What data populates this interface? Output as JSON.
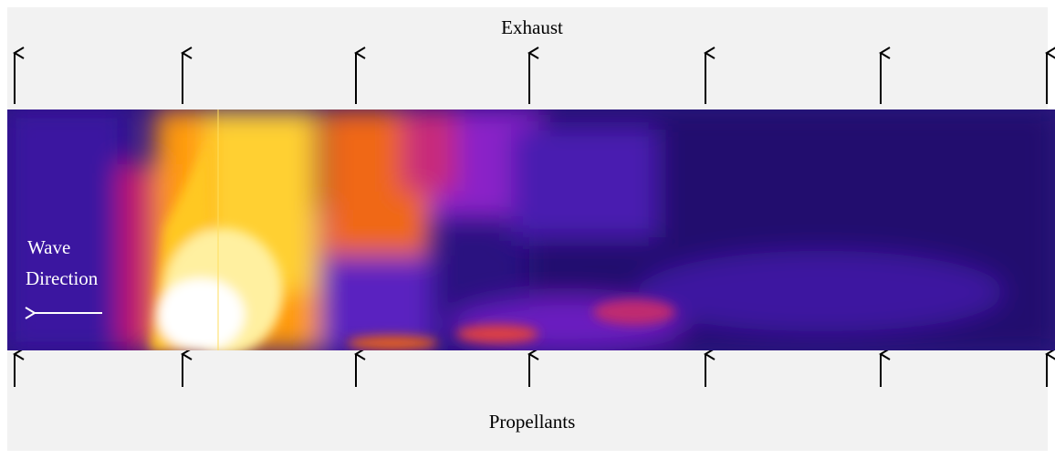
{
  "header": {
    "title": "Exhaust"
  },
  "footer": {
    "label": "Propellants"
  },
  "annotation": {
    "lines": [
      "Wave",
      "Direction"
    ]
  }
}
